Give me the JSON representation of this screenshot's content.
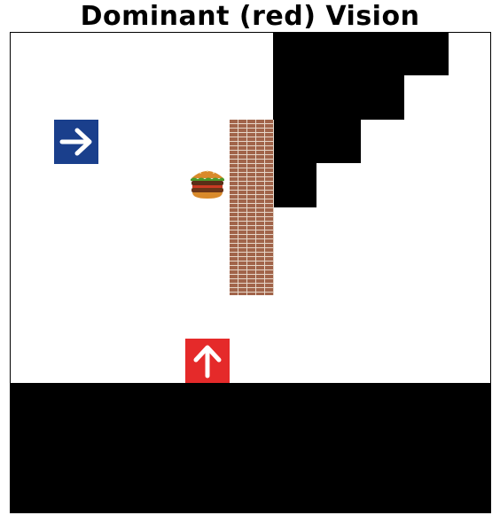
{
  "title": "Dominant (red) Vision",
  "colors": {
    "dominant_agent": "#e52a2a",
    "subordinate_agent": "#1a3f8c",
    "fog": "#000000",
    "background": "#ffffff",
    "wall": "#a1644a"
  },
  "grid": {
    "rows": 11,
    "cols": 11
  },
  "entities": {
    "dominant_agent": {
      "color": "red",
      "facing": "up",
      "icon": "arrow-up-icon"
    },
    "subordinate_agent": {
      "color": "blue",
      "facing": "right",
      "icon": "arrow-right-icon"
    },
    "food": {
      "icon": "burger-icon"
    },
    "wall": {
      "icon": "brick-wall"
    }
  }
}
